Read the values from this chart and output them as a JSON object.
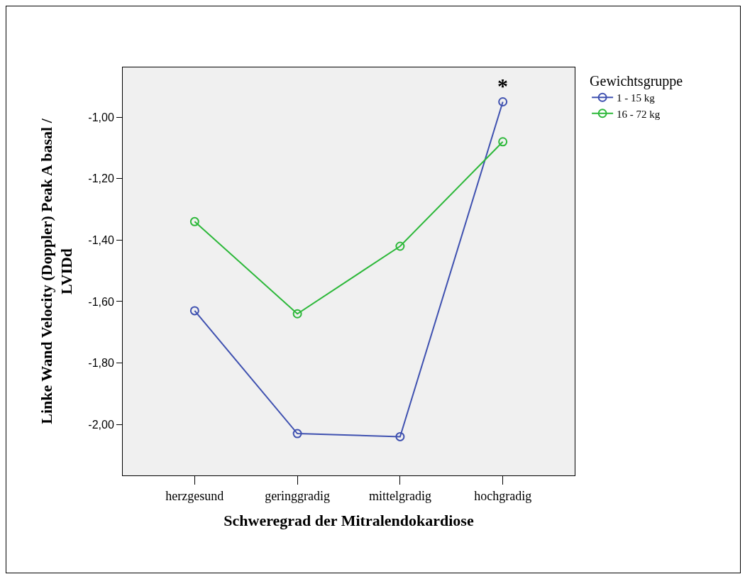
{
  "chart_data": {
    "type": "line",
    "xlabel": "Schweregrad der Mitralendokardiose",
    "ylabel": "Linke Wand Velocity (Doppler) Peak A basal / LVIDd",
    "legend_title": "Gewichtsgruppe",
    "categories": [
      "herzgesund",
      "geringgradig",
      "mittelgradig",
      "hochgradig"
    ],
    "series": [
      {
        "name": "1 - 15 kg",
        "color": "#3f51b0",
        "values": [
          -1.63,
          -2.03,
          -2.04,
          -0.95
        ]
      },
      {
        "name": "16 - 72 kg",
        "color": "#2db83a",
        "values": [
          -1.34,
          -1.64,
          -1.42,
          -1.08
        ]
      }
    ],
    "annotations": [
      {
        "text": "*",
        "x": "hochgradig",
        "y": -0.95
      }
    ],
    "ylim": [
      -2.166,
      -0.838
    ],
    "yticks": [
      {
        "value": -2.0,
        "label": "-2,00"
      },
      {
        "value": -1.8,
        "label": "-1,80"
      },
      {
        "value": -1.6,
        "label": "-1,60"
      },
      {
        "value": -1.4,
        "label": "-1,40"
      },
      {
        "value": -1.2,
        "label": "-1,20"
      },
      {
        "value": -1.0,
        "label": "-1,00"
      }
    ],
    "grid": false,
    "legend": "top right",
    "marker": "circle",
    "line_style": "solid"
  }
}
